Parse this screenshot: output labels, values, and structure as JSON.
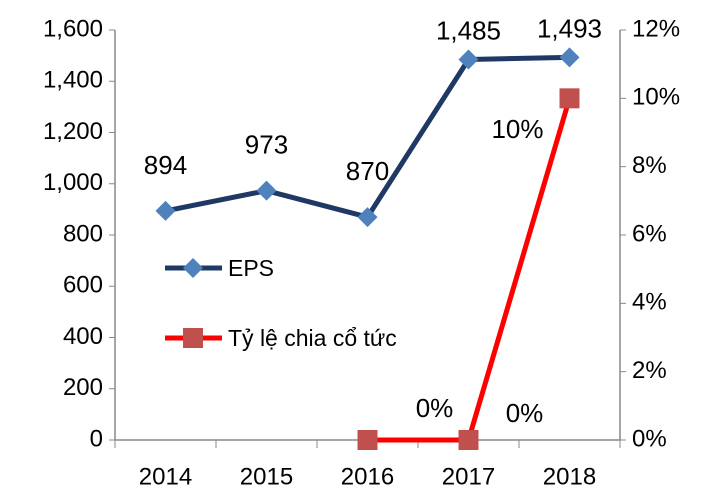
{
  "chart_data": {
    "type": "line",
    "categories": [
      "2014",
      "2015",
      "2016",
      "2017",
      "2018"
    ],
    "series": [
      {
        "name": "EPS",
        "color": "#1f3864",
        "marker_color": "#4f81bd",
        "marker": "diamond",
        "values": [
          894,
          973,
          870,
          1485,
          1493
        ],
        "value_labels": [
          "894",
          "973",
          "870",
          "1,485",
          "1,493"
        ]
      },
      {
        "name": "Tỷ lệ chia cổ tức",
        "color": "#ff0000",
        "marker_color": "#c0504d",
        "marker": "square",
        "axis": "y2",
        "values": [
          null,
          null,
          0,
          0,
          10
        ],
        "value_labels": [
          null,
          null,
          "0%",
          "0%",
          "10%"
        ]
      }
    ],
    "ylim": [
      0,
      1600
    ],
    "yticks": [
      0,
      200,
      400,
      600,
      800,
      {
        "value": 1000,
        "label": "1,000"
      },
      {
        "value": 1200,
        "label": "1,200"
      },
      {
        "value": 1400,
        "label": "1,400"
      },
      {
        "value": 1600,
        "label": "1,600"
      }
    ],
    "y2lim": [
      0,
      12
    ],
    "y2ticks": [
      {
        "value": 0,
        "label": "0%"
      },
      {
        "value": 2,
        "label": "2%"
      },
      {
        "value": 4,
        "label": "4%"
      },
      {
        "value": 6,
        "label": "6%"
      },
      {
        "value": 8,
        "label": "8%"
      },
      {
        "value": 10,
        "label": "10%"
      },
      {
        "value": 12,
        "label": "12%"
      }
    ],
    "grid": false,
    "legend": "left"
  }
}
